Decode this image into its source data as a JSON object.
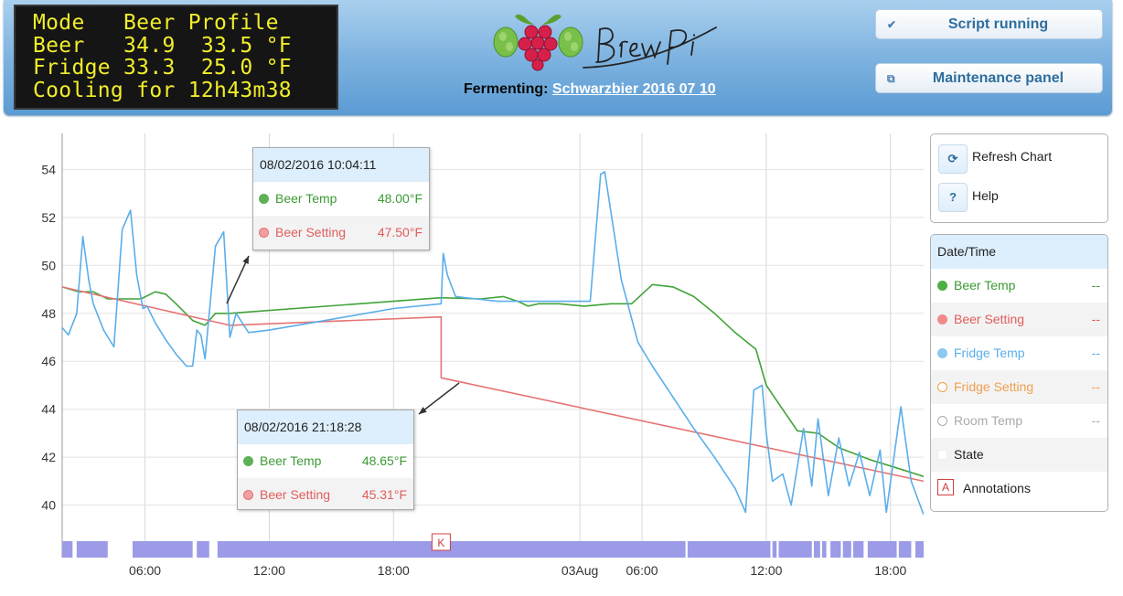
{
  "lcd": {
    "lines": [
      "Mode   Beer Profile",
      "Beer   34.9  33.5 °F",
      "Fridge 33.3  25.0 °F",
      "Cooling for 12h43m38"
    ]
  },
  "header": {
    "fermenting_label": "Fermenting:",
    "fermenting_name": "Schwarzbier 2016 07 10",
    "script_button": "Script running",
    "maintenance_button": "Maintenance panel"
  },
  "controls": {
    "refresh_label": "Refresh Chart",
    "help_label": "Help"
  },
  "legend": {
    "header": "Date/Time",
    "items": [
      {
        "name": "Beer Temp",
        "value": "--",
        "color": "#41a339",
        "filled": true
      },
      {
        "name": "Beer Setting",
        "value": "--",
        "color": "#e57373",
        "filled": true
      },
      {
        "name": "Fridge Temp",
        "value": "--",
        "color": "#5aaeea",
        "filled": true
      },
      {
        "name": "Fridge Setting",
        "value": "--",
        "color": "#f0a050",
        "filled": false
      },
      {
        "name": "Room Temp",
        "value": "--",
        "color": "#aaaaaa",
        "filled": false
      },
      {
        "name": "State",
        "value": "",
        "color": "#ffffff",
        "filled": false
      },
      {
        "name": "Annotations",
        "value": "",
        "color": "#d04040",
        "filled": false
      }
    ]
  },
  "tooltips": [
    {
      "date": "08/02/2016 10:04:11",
      "rows": [
        {
          "name": "Beer Temp",
          "value": "48.00°F",
          "color": "#41a339",
          "text_color": "#3c9a34"
        },
        {
          "name": "Beer Setting",
          "value": "47.50°F",
          "color": "#e57373",
          "text_color": "#e05d5d"
        }
      ]
    },
    {
      "date": "08/02/2016 21:18:28",
      "rows": [
        {
          "name": "Beer Temp",
          "value": "48.65°F",
          "color": "#41a339",
          "text_color": "#3c9a34"
        },
        {
          "name": "Beer Setting",
          "value": "45.31°F",
          "color": "#e57373",
          "text_color": "#e05d5d"
        }
      ]
    }
  ],
  "chart_data": {
    "type": "line",
    "y_ticks": [
      40,
      42,
      44,
      46,
      48,
      50,
      52,
      54
    ],
    "x_tick_labels": [
      "06:00",
      "12:00",
      "18:00",
      "03Aug",
      "06:00",
      "12:00",
      "18:00"
    ],
    "x_tick_hours": [
      6,
      12,
      18,
      27,
      30,
      36,
      42
    ],
    "xlim_hours": [
      2.0,
      43.6
    ],
    "ylim": [
      38.5,
      55.5
    ],
    "grid": true,
    "annotation_marker": {
      "label": "K",
      "hour": 20.3
    },
    "series": [
      {
        "name": "Beer Temp",
        "color": "#41a339",
        "x": [
          2.0,
          2.8,
          3.5,
          4.2,
          5.0,
          5.8,
          6.5,
          7.0,
          7.5,
          8.3,
          8.9,
          9.4,
          9.8,
          10.1,
          20.3,
          22.2,
          23.3,
          24.0,
          24.5,
          25.0,
          26.0,
          27.2,
          28.5,
          29.5,
          30.5,
          31.5,
          32.5,
          33.5,
          34.5,
          35.5,
          36.0,
          37.5,
          38.5,
          39.5,
          41.0,
          42.5,
          43.6
        ],
        "y": [
          49.1,
          48.9,
          48.9,
          48.6,
          48.6,
          48.6,
          48.9,
          48.8,
          48.4,
          47.7,
          47.5,
          48.0,
          48.0,
          48.0,
          48.65,
          48.6,
          48.7,
          48.5,
          48.3,
          48.4,
          48.4,
          48.3,
          48.4,
          48.4,
          49.2,
          49.1,
          48.7,
          48.0,
          47.2,
          46.5,
          45.0,
          43.1,
          43.0,
          42.4,
          41.9,
          41.5,
          41.2
        ]
      },
      {
        "name": "Beer Setting",
        "color": "#e57373",
        "x": [
          2.0,
          10.1,
          20.3,
          20.3,
          43.6
        ],
        "y": [
          49.1,
          47.5,
          47.85,
          45.31,
          41.0
        ]
      },
      {
        "name": "Fridge Temp",
        "color": "#5aaeea",
        "x": [
          2.0,
          2.3,
          2.7,
          3.0,
          3.3,
          3.5,
          4.0,
          4.5,
          4.9,
          5.3,
          5.6,
          5.9,
          6.1,
          6.5,
          7.0,
          7.5,
          8.0,
          8.3,
          8.5,
          8.7,
          8.9,
          9.4,
          9.8,
          10.1,
          10.4,
          11.0,
          12.0,
          14.0,
          16.0,
          18.0,
          20.3,
          20.4,
          20.6,
          21.0,
          22.0,
          23.0,
          24.0,
          24.5,
          25.0,
          26.0,
          27.0,
          27.5,
          28.0,
          28.2,
          29.0,
          29.8,
          30.5,
          31.5,
          32.5,
          33.5,
          34.5,
          35.0,
          35.4,
          35.8,
          36.0,
          36.3,
          36.8,
          37.2,
          37.8,
          38.2,
          38.5,
          39.0,
          39.5,
          40.0,
          40.5,
          41.0,
          41.5,
          41.8,
          42.5,
          43.0,
          43.6
        ],
        "y": [
          47.4,
          47.1,
          48.0,
          51.2,
          49.3,
          48.4,
          47.3,
          46.6,
          51.5,
          52.3,
          49.6,
          48.2,
          48.3,
          47.6,
          46.9,
          46.3,
          45.8,
          45.8,
          47.3,
          47.1,
          46.1,
          50.8,
          51.4,
          47.0,
          48.0,
          47.2,
          47.3,
          47.6,
          47.9,
          48.2,
          48.4,
          50.5,
          49.6,
          48.7,
          48.6,
          48.5,
          48.5,
          48.5,
          48.5,
          48.5,
          48.5,
          48.5,
          53.8,
          53.9,
          49.4,
          46.8,
          45.8,
          44.5,
          43.2,
          42.0,
          40.7,
          39.7,
          44.8,
          45.0,
          43.0,
          41.0,
          41.3,
          40.0,
          43.2,
          40.8,
          43.6,
          40.4,
          42.8,
          40.8,
          42.2,
          40.4,
          42.3,
          39.7,
          44.1,
          41.0,
          39.6
        ]
      }
    ],
    "state_bar": {
      "color": "#9b9be8",
      "gaps_hours": [
        [
          2.5,
          2.7
        ],
        [
          4.2,
          5.4
        ],
        [
          8.3,
          8.5
        ],
        [
          9.1,
          9.5
        ],
        [
          32.1,
          32.2
        ],
        [
          36.2,
          36.3
        ],
        [
          36.5,
          36.6
        ],
        [
          38.2,
          38.3
        ],
        [
          38.6,
          38.7
        ],
        [
          38.9,
          39.1
        ],
        [
          39.6,
          39.7
        ],
        [
          40.1,
          40.2
        ],
        [
          40.7,
          40.9
        ],
        [
          42.3,
          42.4
        ],
        [
          43.0,
          43.2
        ]
      ]
    }
  }
}
